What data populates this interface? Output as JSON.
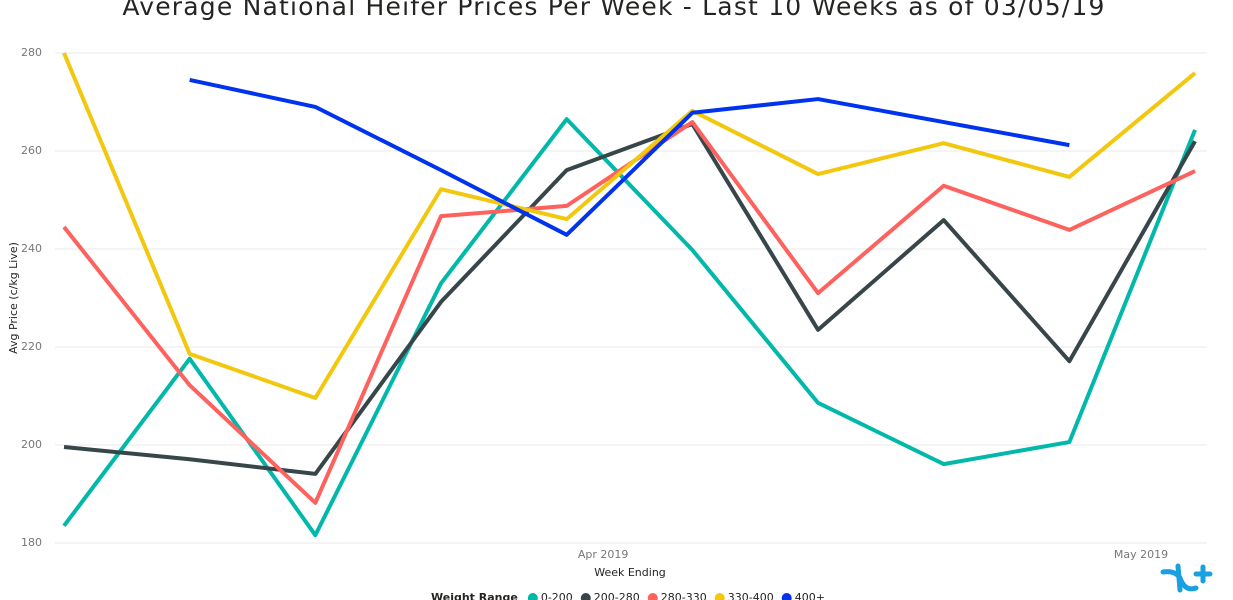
{
  "chart_data": {
    "type": "line",
    "title": "Average National Heifer Prices Per Week - Last 10 Weeks as of 03/05/19",
    "x_label": "Week Ending",
    "y_label": "Avg Price (c/kg Live)",
    "legend_title": "Weight Range",
    "categories": [
      null,
      null,
      null,
      null,
      null,
      null,
      null,
      null,
      null,
      null
    ],
    "xticks": [
      {
        "value": 4.29,
        "label": "Apr 2019"
      },
      {
        "value": 8.57,
        "label": "May 2019"
      }
    ],
    "ylim": [
      180,
      280
    ],
    "yticks": [
      180,
      200,
      220,
      240,
      260,
      280
    ],
    "grid": true,
    "series": [
      {
        "name": "0-200",
        "color": "#01B8AA",
        "values": [
          183.5,
          217.6,
          181.6,
          233,
          266.5,
          239.8,
          208.6,
          196.1,
          200.6,
          264.3
        ]
      },
      {
        "name": "200-280",
        "color": "#374649",
        "values": [
          199.6,
          197.1,
          194.1,
          229.2,
          256.1,
          265.5,
          223.5,
          245.9,
          217.1,
          262
        ]
      },
      {
        "name": "280-330",
        "color": "#FD625E",
        "values": [
          244.5,
          212.2,
          188.2,
          246.7,
          248.8,
          265.9,
          231,
          252.9,
          243.9,
          255.9
        ]
      },
      {
        "name": "330-400",
        "color": "#F2C80F",
        "values": [
          280,
          218.6,
          209.6,
          252.2,
          246.1,
          268.2,
          255.3,
          261.6,
          254.7,
          275.9
        ]
      },
      {
        "name": "400+",
        "color": "#0033EE",
        "values": [
          null,
          274.5,
          269,
          256.1,
          242.9,
          267.8,
          270.6,
          265.9,
          261.2,
          null
        ]
      }
    ]
  }
}
